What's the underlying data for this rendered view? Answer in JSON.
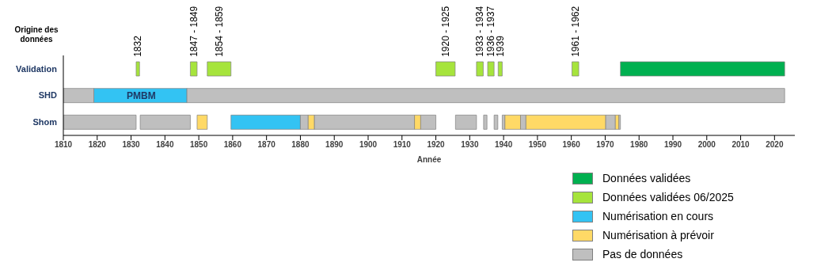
{
  "chart_data": {
    "type": "bar",
    "orientation": "horizontal",
    "ylabel": "Origine des données",
    "xlabel": "Année",
    "categories": [
      "Validation",
      "SHD",
      "Shom"
    ],
    "xlim": [
      1810,
      2026
    ],
    "xticks": [
      1810,
      1820,
      1830,
      1840,
      1850,
      1860,
      1870,
      1880,
      1890,
      1900,
      1910,
      1920,
      1930,
      1940,
      1950,
      1960,
      1970,
      1980,
      1990,
      2000,
      2010,
      2020
    ],
    "legend": "bottom right",
    "annotations": [
      {
        "text": "PMBM",
        "x": 1833,
        "y": "SHD"
      },
      {
        "text": "1832",
        "x": 1832,
        "y": "Validation"
      },
      {
        "text": "1847 - 1849",
        "x": 1848.5,
        "y": "Validation"
      },
      {
        "text": "1854 - 1859",
        "x": 1856,
        "y": "Validation"
      },
      {
        "text": "1920 - 1925",
        "x": 1922.9,
        "y": "Validation"
      },
      {
        "text": "1933 - 1934",
        "x": 1933,
        "y": "Validation"
      },
      {
        "text": "1936 - 1937",
        "x": 1936.3,
        "y": "Validation"
      },
      {
        "text": "1939",
        "x": 1939,
        "y": "Validation"
      },
      {
        "text": "1961 - 1962",
        "x": 1961.2,
        "y": "Validation"
      }
    ],
    "series": [
      {
        "name": "Données validées",
        "color": "#00b050",
        "values": [
          48.5,
          null,
          null
        ],
        "base": [
          1974.5,
          null,
          null
        ]
      },
      {
        "name": "Données validées 06/2025",
        "color": "#a6e43c",
        "values": [
          1,
          null,
          null
        ],
        "base": [
          1831.5,
          null,
          null
        ]
      },
      {
        "name": "Numérisation en cours",
        "color": "#33c3f3",
        "values": [
          null,
          27.5,
          20.5
        ],
        "base": [
          null,
          1819,
          1859.5
        ]
      },
      {
        "name": "Numérisation à prévoir",
        "color": "#ffd966",
        "values": [
          null,
          null,
          3
        ],
        "base": [
          null,
          null,
          1849.5
        ]
      },
      {
        "name": "Pas de données",
        "color": "#bfbfbf",
        "values": [
          null,
          9,
          21.5
        ],
        "base": [
          null,
          1810,
          1810
        ]
      },
      {
        "color": "#a6e43c",
        "values": [
          2,
          null,
          null
        ],
        "base": [
          1847.5,
          null,
          null
        ]
      },
      {
        "color": "#a6e43c",
        "values": [
          7,
          null,
          null
        ],
        "base": [
          1852.5,
          null,
          null
        ]
      },
      {
        "color": "#a6e43c",
        "values": [
          5.7,
          null,
          null
        ],
        "base": [
          1920,
          null,
          null
        ]
      },
      {
        "color": "#a6e43c",
        "values": [
          2,
          null,
          null
        ],
        "base": [
          1932,
          null,
          null
        ]
      },
      {
        "color": "#a6e43c",
        "values": [
          1.9,
          null,
          null
        ],
        "base": [
          1935.3,
          null,
          null
        ]
      },
      {
        "color": "#a6e43c",
        "values": [
          1.2,
          null,
          null
        ],
        "base": [
          1938.4,
          null,
          null
        ]
      },
      {
        "color": "#a6e43c",
        "values": [
          2,
          null,
          null
        ],
        "base": [
          1960.2,
          null,
          null
        ]
      },
      {
        "color": "#bfbfbf",
        "values": [
          null,
          176.5,
          14.8
        ],
        "base": [
          null,
          1846.5,
          1832.7
        ]
      },
      {
        "color": "#bfbfbf",
        "values": [
          null,
          null,
          2.3
        ],
        "base": [
          null,
          null,
          1880
        ]
      },
      {
        "color": "#bfbfbf",
        "values": [
          null,
          null,
          29.6
        ],
        "base": [
          null,
          null,
          1884.1
        ]
      },
      {
        "color": "#bfbfbf",
        "values": [
          null,
          null,
          4.5
        ],
        "base": [
          null,
          null,
          1915.5
        ]
      },
      {
        "color": "#bfbfbf",
        "values": [
          null,
          null,
          6.2
        ],
        "base": [
          null,
          null,
          1925.8
        ]
      },
      {
        "color": "#bfbfbf",
        "values": [
          null,
          null,
          1
        ],
        "base": [
          null,
          null,
          1934.1
        ]
      },
      {
        "color": "#bfbfbf",
        "values": [
          null,
          null,
          1.1
        ],
        "base": [
          null,
          null,
          1937.2
        ]
      },
      {
        "color": "#bfbfbf",
        "values": [
          null,
          null,
          0.8
        ],
        "base": [
          null,
          null,
          1939.6
        ]
      },
      {
        "color": "#bfbfbf",
        "values": [
          null,
          null,
          1.6
        ],
        "base": [
          null,
          null,
          1945
        ]
      },
      {
        "color": "#bfbfbf",
        "values": [
          null,
          null,
          2.9
        ],
        "base": [
          null,
          null,
          1970.1
        ]
      },
      {
        "color": "#bfbfbf",
        "values": [
          null,
          null,
          0.5
        ],
        "base": [
          null,
          null,
          1974
        ]
      },
      {
        "color": "#ffd966",
        "values": [
          null,
          null,
          1.8
        ],
        "base": [
          null,
          null,
          1882.3
        ]
      },
      {
        "color": "#ffd966",
        "values": [
          null,
          null,
          1.8
        ],
        "base": [
          null,
          null,
          1913.7
        ]
      },
      {
        "color": "#ffd966",
        "values": [
          null,
          null,
          4.6
        ],
        "base": [
          null,
          null,
          1940.4
        ]
      },
      {
        "color": "#ffd966",
        "values": [
          null,
          null,
          23.5
        ],
        "base": [
          null,
          null,
          1946.6
        ]
      },
      {
        "color": "#ffd966",
        "values": [
          null,
          null,
          1
        ],
        "base": [
          null,
          null,
          1973
        ]
      }
    ]
  }
}
